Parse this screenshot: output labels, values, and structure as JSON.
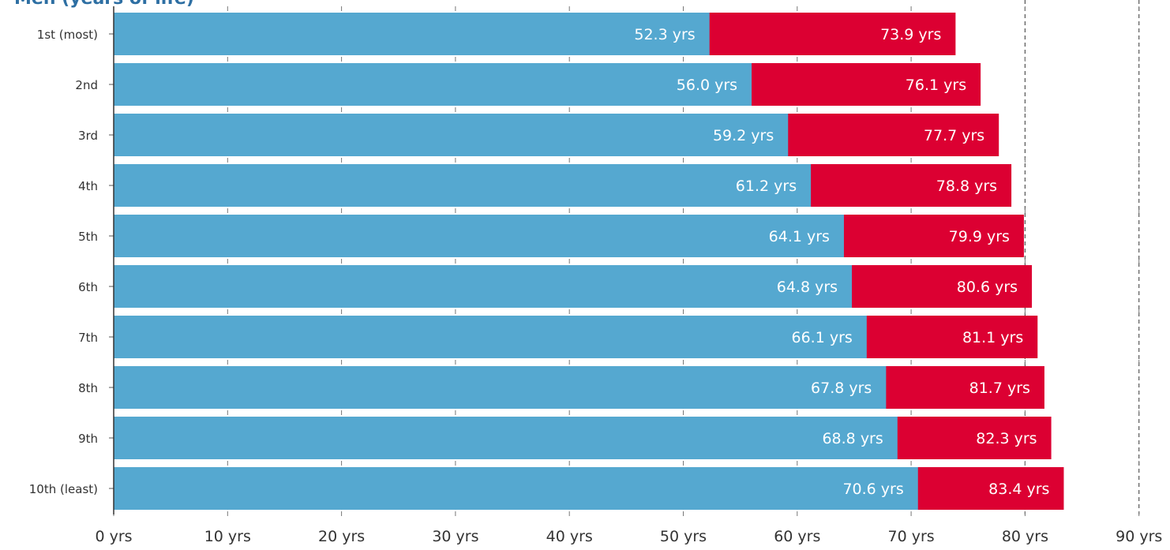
{
  "chart_data": {
    "type": "bar",
    "orientation": "horizontal",
    "stacking": "overlay",
    "title": "Men (years of life)",
    "categories": [
      "1st (most)",
      "2nd",
      "3rd",
      "4th",
      "5th",
      "6th",
      "7th",
      "8th",
      "9th",
      "10th (least)"
    ],
    "series": [
      {
        "values": [
          73.9,
          76.1,
          77.7,
          78.8,
          79.9,
          80.6,
          81.1,
          81.7,
          82.3,
          83.4
        ],
        "labels": [
          "73.9 yrs",
          "76.1 yrs",
          "77.7 yrs",
          "78.8 yrs",
          "79.9 yrs",
          "80.6 yrs",
          "81.1 yrs",
          "81.7 yrs",
          "82.3 yrs",
          "83.4 yrs"
        ],
        "color": "#dc0032"
      },
      {
        "values": [
          52.3,
          56.0,
          59.2,
          61.2,
          64.1,
          64.8,
          66.1,
          67.8,
          68.8,
          70.6
        ],
        "labels": [
          "52.3 yrs",
          "56.0 yrs",
          "59.2 yrs",
          "61.2 yrs",
          "64.1 yrs",
          "64.8 yrs",
          "66.1 yrs",
          "67.8 yrs",
          "68.8 yrs",
          "70.6 yrs"
        ],
        "color": "#55a8d0"
      }
    ],
    "xlim": [
      0,
      90
    ],
    "xticks": [
      0,
      10,
      20,
      30,
      40,
      50,
      60,
      70,
      80,
      90
    ],
    "xtick_labels": [
      "0 yrs",
      "10 yrs",
      "20 yrs",
      "30 yrs",
      "40 yrs",
      "50 yrs",
      "60 yrs",
      "70 yrs",
      "80 yrs",
      "90 yrs"
    ],
    "reference_lines": [
      80,
      90
    ],
    "grid": false
  }
}
